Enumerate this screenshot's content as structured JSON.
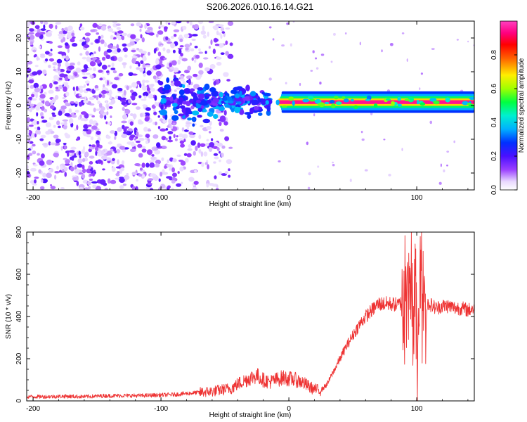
{
  "title": "S206.2026.010.16.14.G21",
  "chart_data": [
    {
      "type": "heatmap",
      "xlabel": "Height of straight line (km)",
      "ylabel": "Frequency (Hz)",
      "xlim": [
        -205,
        145
      ],
      "ylim": [
        -25,
        25
      ],
      "xticks": [
        -200,
        -100,
        0,
        100
      ],
      "yticks": [
        -20,
        -10,
        0,
        10,
        20
      ],
      "colorbar": {
        "label": "Normalized spectral amplitude",
        "range": [
          0.0,
          1.0
        ],
        "ticks": [
          "0.0",
          "0.2",
          "0.4",
          "0.6",
          "0.8"
        ],
        "colormap": "rainbow (white-violet-blue-cyan-green-yellow-red-magenta)"
      },
      "ridge": {
        "frequency_hz": 1,
        "start_km": -10,
        "end_km": 145,
        "peak_amplitude": 0.95
      },
      "noise_region_km": [
        -205,
        -45
      ],
      "transition_region_km": [
        -100,
        -15
      ]
    },
    {
      "type": "line",
      "xlabel": "Height of straight line (km)",
      "ylabel": "SNR (10 * v/v)",
      "xlim": [
        -205,
        145
      ],
      "ylim": [
        0,
        800
      ],
      "xticks": [
        -200,
        -100,
        0,
        100
      ],
      "yticks": [
        0,
        200,
        400,
        600,
        800
      ],
      "color": "#ee3333",
      "series": [
        {
          "name": "",
          "x": [
            -205,
            -190,
            -175,
            -160,
            -145,
            -130,
            -115,
            -100,
            -90,
            -80,
            -70,
            -60,
            -50,
            -45,
            -40,
            -35,
            -30,
            -25,
            -20,
            -15,
            -10,
            -5,
            0,
            5,
            10,
            15,
            20,
            25,
            30,
            35,
            40,
            45,
            50,
            55,
            60,
            65,
            70,
            75,
            80,
            85,
            90,
            93,
            95,
            97,
            99,
            101,
            103,
            105,
            110,
            115,
            120,
            125,
            130,
            135,
            140,
            145
          ],
          "y": [
            20,
            20,
            22,
            20,
            24,
            25,
            25,
            28,
            30,
            35,
            40,
            45,
            55,
            60,
            80,
            95,
            110,
            120,
            100,
            90,
            100,
            110,
            105,
            100,
            90,
            70,
            55,
            50,
            80,
            140,
            200,
            260,
            310,
            360,
            400,
            430,
            460,
            460,
            460,
            455,
            470,
            550,
            620,
            300,
            520,
            150,
            700,
            450,
            460,
            440,
            450,
            450,
            440,
            440,
            430,
            440
          ]
        }
      ]
    }
  ]
}
